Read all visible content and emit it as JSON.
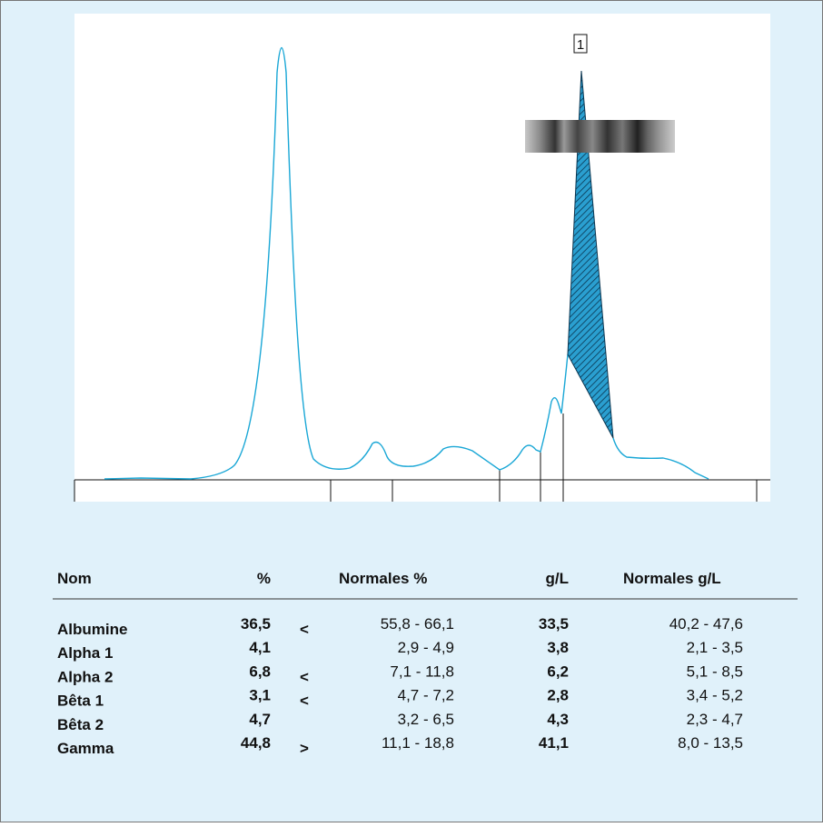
{
  "figure": {
    "peak_label": "1"
  },
  "table": {
    "headers": [
      "Nom",
      "%",
      "Normales %",
      "g/L",
      "Normales g/L"
    ],
    "rows": [
      {
        "name": "Albumine",
        "pct": "36,5",
        "flag": "<",
        "normal_pct": "55,8 - 66,1",
        "gl": "33,5",
        "normal_gl": "40,2 - 47,6"
      },
      {
        "name": "Alpha 1",
        "pct": "4,1",
        "normal_pct": "2,9 - 4,9",
        "gl": "3,8",
        "normal_gl": "2,1 - 3,5"
      },
      {
        "name": "Alpha 2",
        "pct": "6,8",
        "flag": "<",
        "normal_pct": "7,1 - 11,8",
        "gl": "6,2",
        "normal_gl": "5,1 - 8,5"
      },
      {
        "name": "Bêta 1",
        "pct": "3,1",
        "flag": "<",
        "normal_pct": "4,7 - 7,2",
        "gl": "2,8",
        "normal_gl": "3,4 - 5,2"
      },
      {
        "name": "Bêta 2",
        "pct": "4,7",
        "normal_pct": "3,2 - 6,5",
        "gl": "4,3",
        "normal_gl": "2,3 - 4,7"
      },
      {
        "name": "Gamma",
        "pct": "44,8",
        "flag": ">",
        "normal_pct": "11,1 - 18,8",
        "gl": "41,1",
        "normal_gl": "8,0 - 13,5"
      }
    ]
  }
}
